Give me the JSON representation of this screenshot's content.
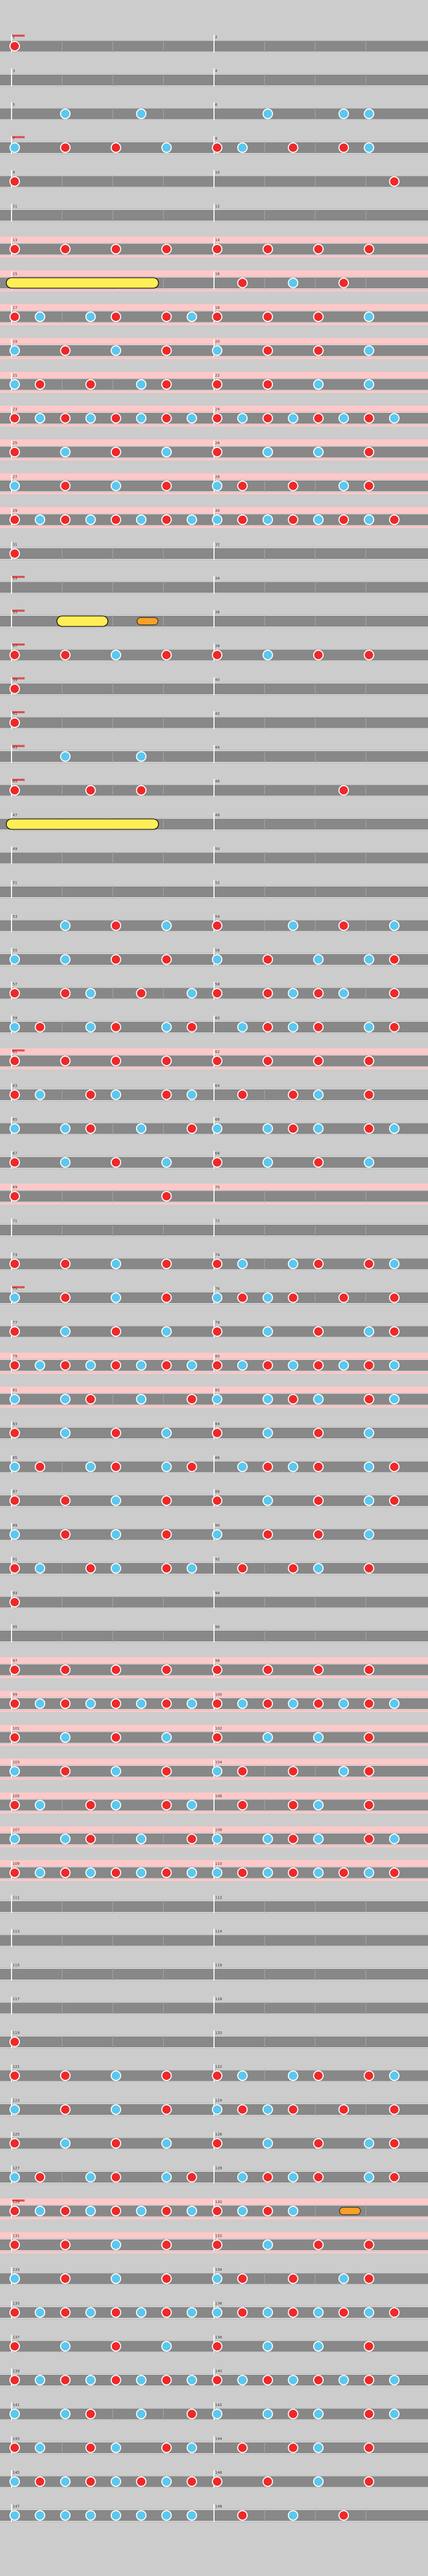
{
  "page": {
    "title": "",
    "difficulty_label": "",
    "difficulty_stars": ""
  },
  "colors": {
    "background": "#cccccc",
    "lane": "#888888",
    "lane_line": "#ffffff",
    "measure_line": "#ffffff",
    "beat_line": "#aaaaaa",
    "don_note": "#f02828",
    "ka_note": "#5ac8f0",
    "drumroll": "#f8e658",
    "drumroll_big": "#ffee55",
    "balloon": "#f8a028",
    "gogo_band": "#ffc8c8",
    "annotation": "#dd0000",
    "scroll_label": "#4444cc"
  },
  "chart_data": {
    "type": "rhythm-game-chart",
    "measures_per_row": 2,
    "rows": [
      {
        "n": [
          1,
          2
        ],
        "g": 0,
        "d": "d.......|........",
        "mark": "0"
      },
      {
        "n": [
          3,
          4
        ],
        "g": 0,
        "d": "........|........"
      },
      {
        "n": [
          5,
          6
        ],
        "g": 0,
        "d": "..k..k..|..k..kk."
      },
      {
        "n": [
          7,
          8
        ],
        "g": 0,
        "d": "k.d.d.k.|dk.d.dk.",
        "mark": "1"
      },
      {
        "n": [
          9,
          10
        ],
        "g": 0,
        "d": "d.......|.......d"
      },
      {
        "n": [
          11,
          12
        ],
        "g": 0,
        "d": "........|........"
      },
      {
        "n": [
          13,
          14
        ],
        "g": 1,
        "d": "d.d.d.d.|d.d.d.d."
      },
      {
        "n": [
          15,
          16
        ],
        "g": 1,
        "d": "RRRRRR..|.d.k.d.."
      },
      {
        "n": [
          17,
          18
        ],
        "g": 1,
        "d": "dk.kd.dk|d.d.d.k."
      },
      {
        "n": [
          19,
          20
        ],
        "g": 1,
        "d": "k.d.k.d.|k.d.d.k."
      },
      {
        "n": [
          21,
          22
        ],
        "g": 1,
        "d": "kd.d.kd.|d.d.k.k."
      },
      {
        "n": [
          23,
          24
        ],
        "g": 1,
        "d": "dkdkdkdk|dkdkdkdk"
      },
      {
        "n": [
          25,
          26
        ],
        "g": 1,
        "d": "d.k.d.k.|d.k.k.d."
      },
      {
        "n": [
          27,
          28
        ],
        "g": 1,
        "d": "k.d.k.d.|kd.d.kd."
      },
      {
        "n": [
          29,
          30
        ],
        "g": 1,
        "d": "dkdkdkdk|kdkdkdkd"
      },
      {
        "n": [
          31,
          32
        ],
        "g": 0,
        "d": "d.......|........"
      },
      {
        "n": [
          33,
          34
        ],
        "g": 0,
        "d": "........|........",
        "mark": "2"
      },
      {
        "n": [
          35,
          36
        ],
        "g": 0,
        "d": "..RR.B..|........",
        "mark": "2"
      },
      {
        "n": [
          37,
          38
        ],
        "g": 0,
        "d": "d.d.k.d.|d.k.d.d.",
        "mark": "2"
      },
      {
        "n": [
          39,
          40
        ],
        "g": 0,
        "d": "d.......|........",
        "mark": "2"
      },
      {
        "n": [
          41,
          42
        ],
        "g": 0,
        "d": "d.......|........",
        "mark": "2"
      },
      {
        "n": [
          43,
          44
        ],
        "g": 0,
        "d": "..k..k..|........",
        "mark": "2"
      },
      {
        "n": [
          45,
          46
        ],
        "g": 0,
        "d": "d..d.d..|.....d..",
        "mark": "3"
      },
      {
        "n": [
          47,
          48
        ],
        "g": 0,
        "d": "RRRRRR..|........"
      },
      {
        "n": [
          49,
          50
        ],
        "g": 0,
        "d": "........|........"
      },
      {
        "n": [
          51,
          52
        ],
        "g": 0,
        "d": "........|........"
      },
      {
        "n": [
          53,
          54
        ],
        "g": 0,
        "d": "..k.d.k.|d..k.d.k"
      },
      {
        "n": [
          55,
          56
        ],
        "g": 0,
        "d": "k.k.d.d.|k.d.k.kd"
      },
      {
        "n": [
          57,
          58
        ],
        "g": 0,
        "d": "d.dk.d.k|d.dkdk.d"
      },
      {
        "n": [
          59,
          60
        ],
        "g": 0,
        "d": "kd.kd.kd|.kdkd.kd"
      },
      {
        "n": [
          61,
          62
        ],
        "g": 1,
        "d": "d.d.d.d.|d.d.d.d.",
        "mark": "4"
      },
      {
        "n": [
          63,
          64
        ],
        "g": 0,
        "d": "dk.dk.dk|.d.dk.d."
      },
      {
        "n": [
          65,
          66
        ],
        "g": 0,
        "d": "k.kd.k.d|k.kdk.dk"
      },
      {
        "n": [
          67,
          68
        ],
        "g": 0,
        "d": "d.k.d.k.|d.k.d.k."
      },
      {
        "n": [
          69,
          70
        ],
        "g": 1,
        "d": "d.....d.|........"
      },
      {
        "n": [
          71,
          72
        ],
        "g": 0,
        "d": "........|........"
      },
      {
        "n": [
          73,
          74
        ],
        "g": 0,
        "d": "d.d.k.d.|dk.kd.dk"
      },
      {
        "n": [
          75,
          76
        ],
        "g": 0,
        "d": "k.d.k.d.|kdkd.d.d",
        "mark": "5"
      },
      {
        "n": [
          77,
          78
        ],
        "g": 0,
        "d": "d.k.d.k.|d.k.d.kd"
      },
      {
        "n": [
          79,
          80
        ],
        "g": 1,
        "d": "dkdkdkdk|dkdkdkdk"
      },
      {
        "n": [
          81,
          82
        ],
        "g": 1,
        "d": "k.kd.k.d|k.kdk.dk"
      },
      {
        "n": [
          83,
          84
        ],
        "g": 0,
        "d": "d.k.d.k.|d.k.d.k."
      },
      {
        "n": [
          85,
          86
        ],
        "g": 0,
        "d": "kd.kd.kd|.kdkd.kd"
      },
      {
        "n": [
          87,
          88
        ],
        "g": 0,
        "d": "d.d.k.d.|d.k.d.kd"
      },
      {
        "n": [
          89,
          90
        ],
        "g": 0,
        "d": "k.d.k.d.|k.d.d.k."
      },
      {
        "n": [
          91,
          92
        ],
        "g": 0,
        "d": "dk.dk.dk|.d.dk.d."
      },
      {
        "n": [
          93,
          94
        ],
        "g": 0,
        "d": "d.......|........"
      },
      {
        "n": [
          95,
          96
        ],
        "g": 0,
        "d": "........|........"
      },
      {
        "n": [
          97,
          98
        ],
        "g": 1,
        "d": "d.d.d.d.|d.d.d.d."
      },
      {
        "n": [
          99,
          100
        ],
        "g": 1,
        "d": "dkdkdkdk|dkdkdkdk"
      },
      {
        "n": [
          101,
          102
        ],
        "g": 1,
        "d": "d.k.d.k.|d.k.k.d."
      },
      {
        "n": [
          103,
          104
        ],
        "g": 1,
        "d": "k.d.k.d.|kd.d.kd."
      },
      {
        "n": [
          105,
          106
        ],
        "g": 1,
        "d": "dk.dk.dk|.d.dk.d."
      },
      {
        "n": [
          107,
          108
        ],
        "g": 1,
        "d": "k.kd.k.d|k.kdk.dk"
      },
      {
        "n": [
          109,
          110
        ],
        "g": 1,
        "d": "dkdkdkdk|kdkdkdkd"
      },
      {
        "n": [
          111,
          112
        ],
        "g": 0,
        "d": "........|........"
      },
      {
        "n": [
          113,
          114
        ],
        "g": 0,
        "d": "........|........"
      },
      {
        "n": [
          115,
          116
        ],
        "g": 0,
        "d": "........|........"
      },
      {
        "n": [
          117,
          118
        ],
        "g": 0,
        "d": "........|........"
      },
      {
        "n": [
          119,
          120
        ],
        "g": 0,
        "d": "d.......|........"
      },
      {
        "n": [
          121,
          122
        ],
        "g": 0,
        "d": "d.d.k.d.|dk.kd.dk"
      },
      {
        "n": [
          123,
          124
        ],
        "g": 0,
        "d": "k.d.k.d.|kdkd.d.d"
      },
      {
        "n": [
          125,
          126
        ],
        "g": 0,
        "d": "d.k.d.k.|d.k.d.kd"
      },
      {
        "n": [
          127,
          128
        ],
        "g": 0,
        "d": "kd.kd.kd|.kdkd.kd"
      },
      {
        "n": [
          129,
          130
        ],
        "g": 1,
        "d": "dkdkdkdk|dkdk.B..",
        "mark": "6"
      },
      {
        "n": [
          131,
          132
        ],
        "g": 1,
        "d": "d.d.k.d.|d.k.d.d."
      },
      {
        "n": [
          133,
          134
        ],
        "g": 0,
        "d": "k.d.k.d.|kd.d.kd."
      },
      {
        "n": [
          135,
          136
        ],
        "g": 0,
        "d": "dkdkdkdk|kdkdkdkd"
      },
      {
        "n": [
          137,
          138
        ],
        "g": 0,
        "d": "d.k.d.k.|d.k.k.d."
      },
      {
        "n": [
          139,
          140
        ],
        "g": 0,
        "d": "dkdkdkdk|dkdkdkdk"
      },
      {
        "n": [
          141,
          142
        ],
        "g": 0,
        "d": "k.kd.k.d|k.kdk.dk"
      },
      {
        "n": [
          143,
          144
        ],
        "g": 0,
        "d": "dk.dk.dk|.d.dk.d."
      },
      {
        "n": [
          145,
          146
        ],
        "g": 0,
        "d": "kdkdkdkd|d.d.k.d."
      },
      {
        "n": [
          147,
          148
        ],
        "g": 0,
        "d": "kkkkkkkk|.d.k.d.."
      }
    ]
  }
}
